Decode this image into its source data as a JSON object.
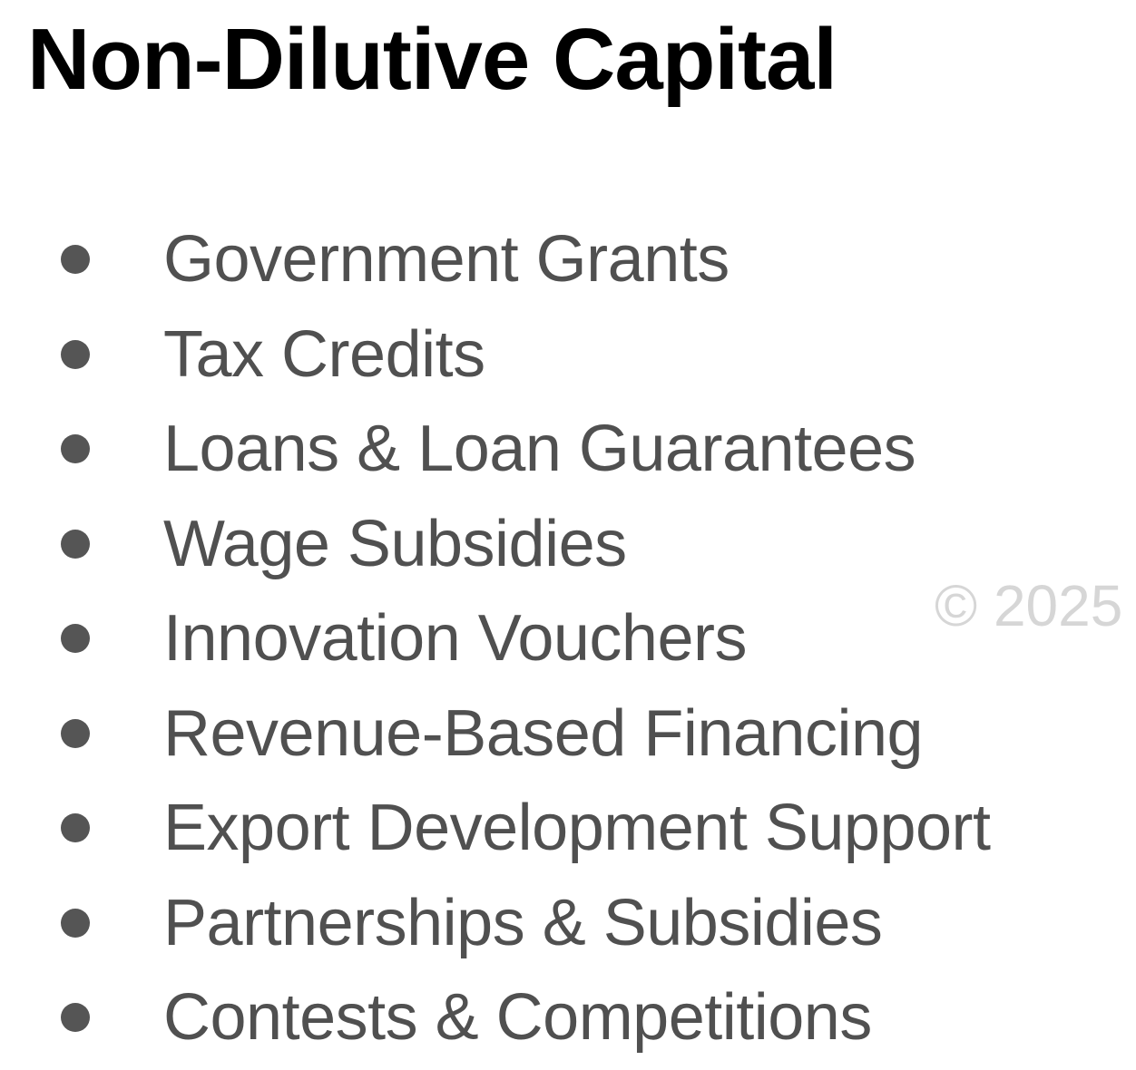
{
  "slide": {
    "title": "Non-Dilutive Capital",
    "bullets": [
      "Government Grants",
      "Tax Credits",
      "Loans & Loan Guarantees",
      "Wage Subsidies",
      "Innovation Vouchers",
      "Revenue-Based Financing",
      "Export Development Support",
      "Partnerships & Subsidies",
      "Contests & Competitions"
    ],
    "watermark": "© 2025"
  },
  "colors": {
    "background": "#ffffff",
    "title": "#000000",
    "bullet_text": "#505050",
    "bullet_dot": "#555555",
    "watermark": "#d6d6d6"
  }
}
